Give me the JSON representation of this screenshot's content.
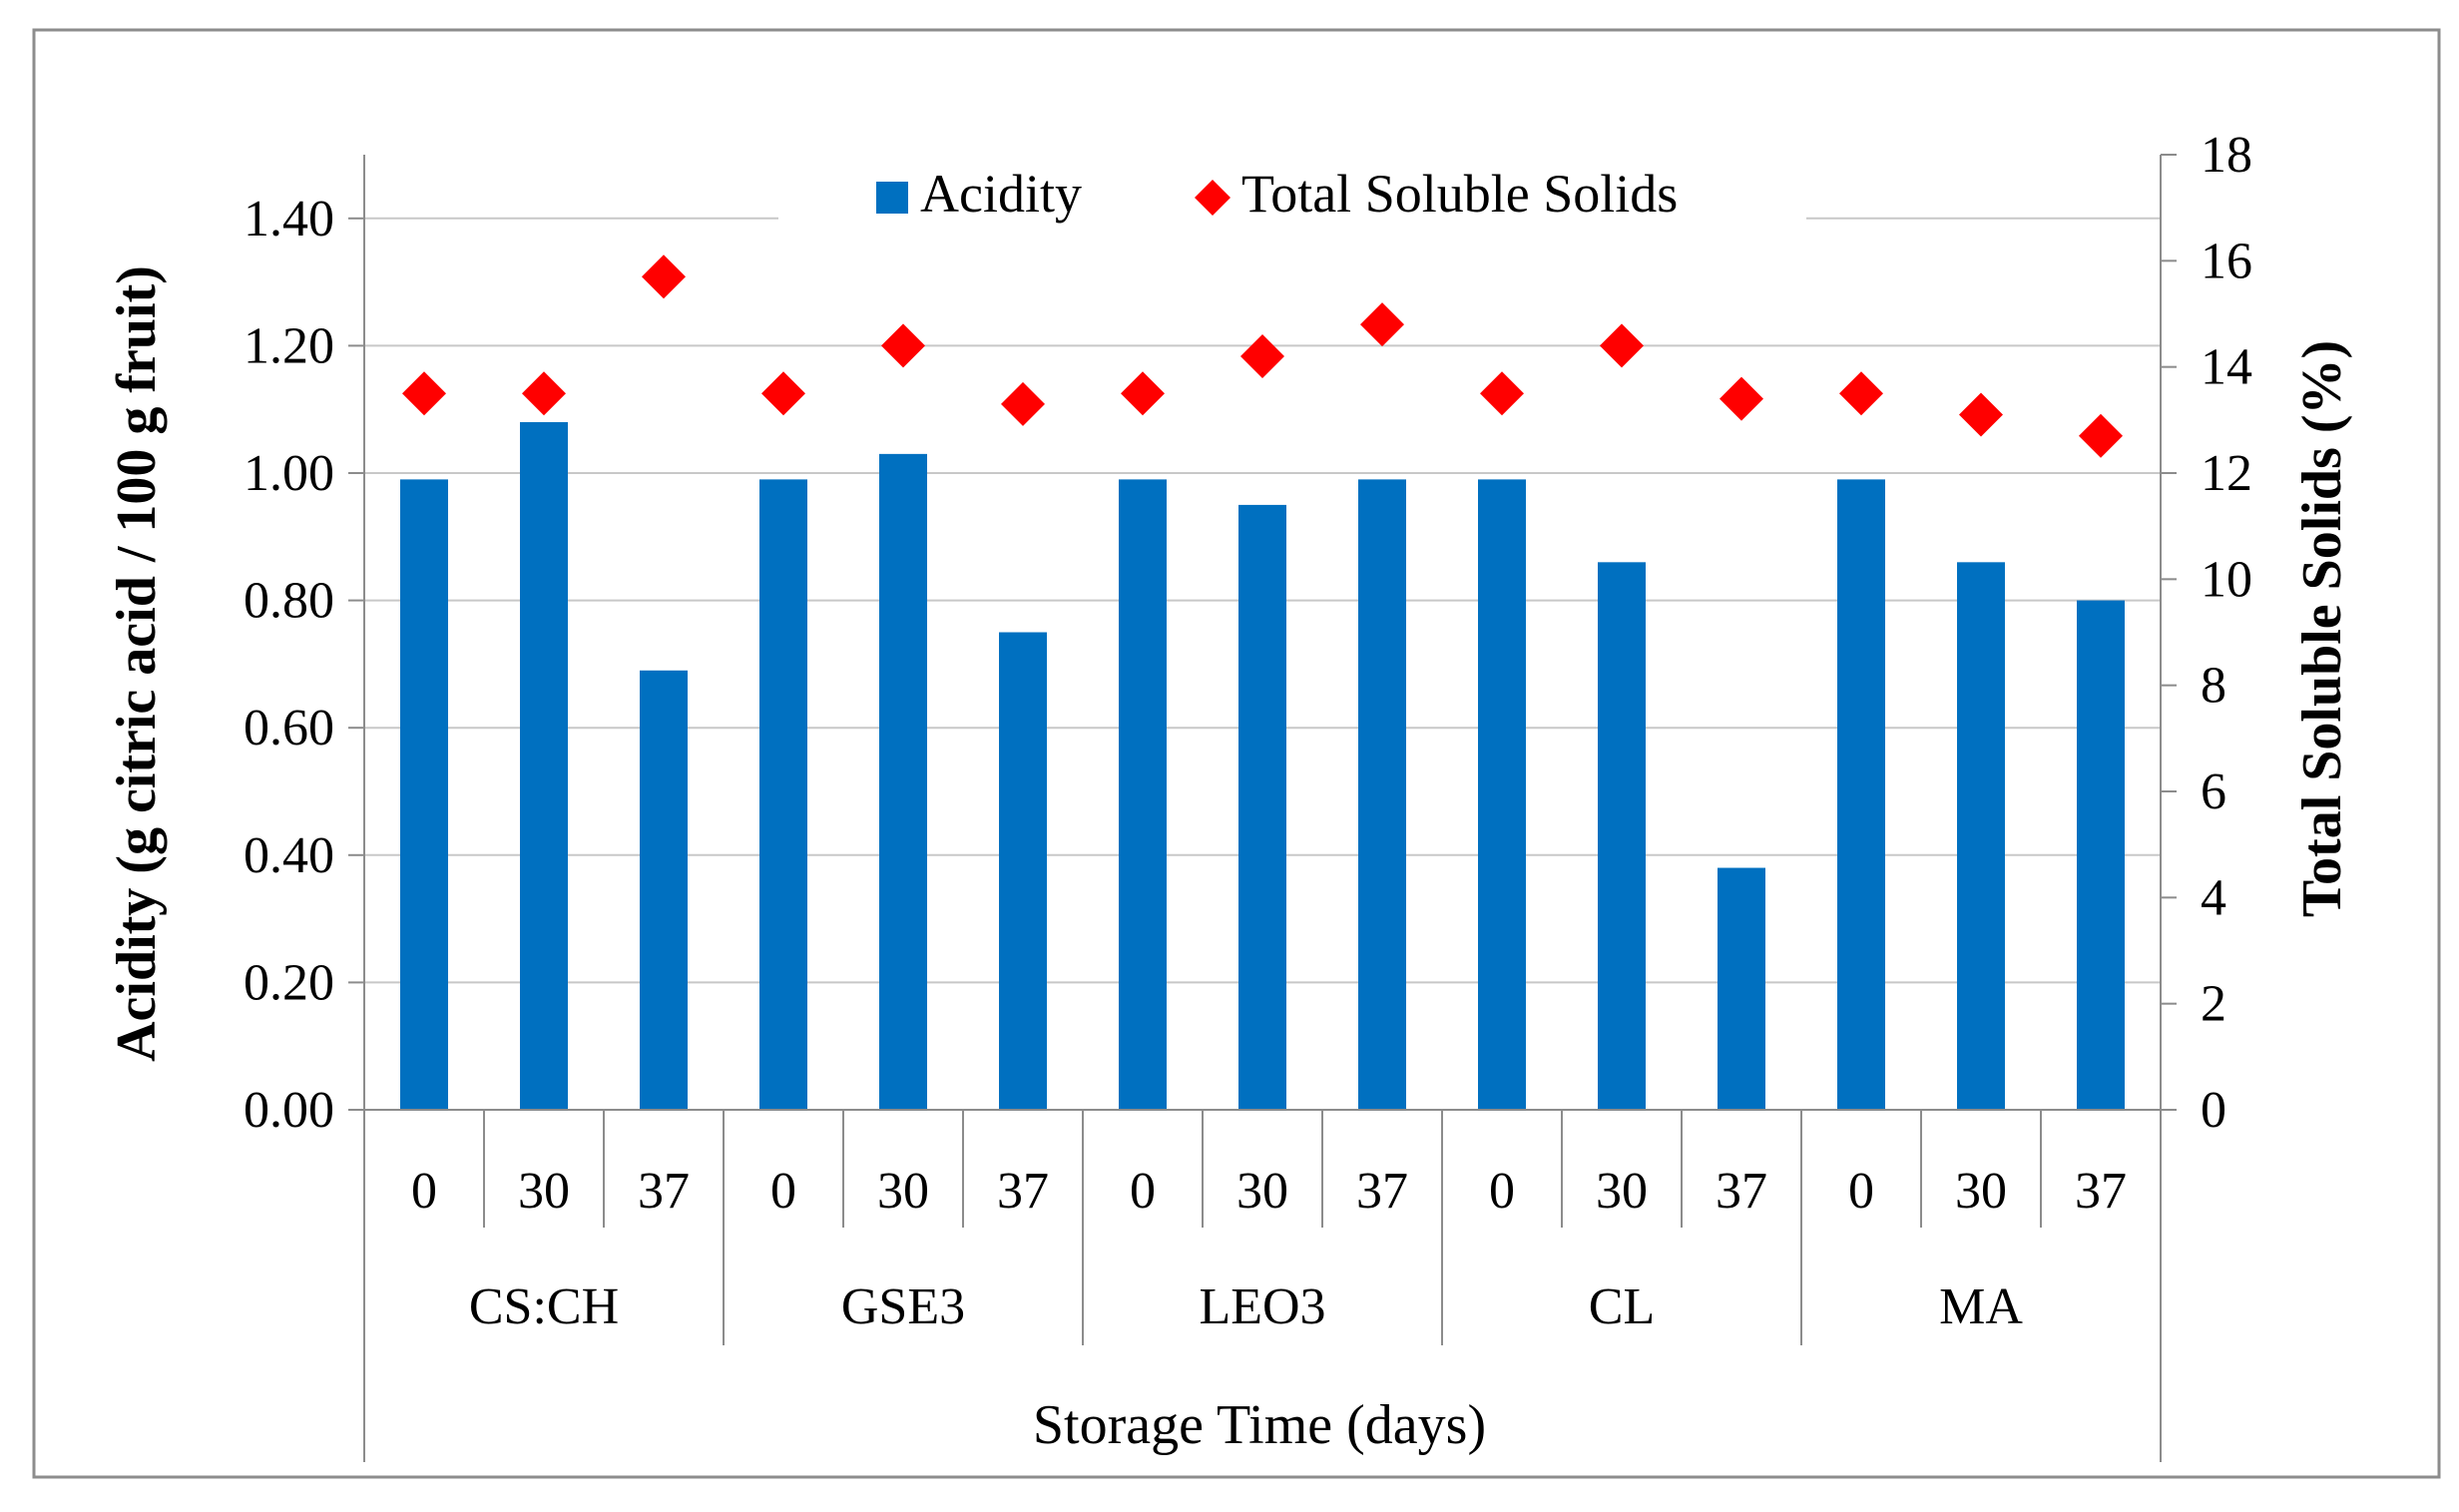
{
  "chart_data": {
    "type": "bar",
    "title": "",
    "groups": [
      "CS:CH",
      "GSE3",
      "LEO3",
      "CL",
      "MA"
    ],
    "days": [
      "0",
      "30",
      "37"
    ],
    "categories": [
      "CS:CH 0",
      "CS:CH 30",
      "CS:CH 37",
      "GSE3 0",
      "GSE3 30",
      "GSE3 37",
      "LEO3 0",
      "LEO3 30",
      "LEO3 37",
      "CL 0",
      "CL 30",
      "CL 37",
      "MA 0",
      "MA 30",
      "MA 37"
    ],
    "series": [
      {
        "name": "Acidity",
        "kind": "bar",
        "axis": "left",
        "color": "#0070C0",
        "values": [
          0.99,
          1.08,
          0.69,
          0.99,
          1.03,
          0.75,
          0.99,
          0.95,
          0.99,
          0.99,
          0.86,
          0.38,
          0.99,
          0.86,
          0.8
        ]
      },
      {
        "name": "Total Soluble Solids",
        "kind": "marker",
        "marker": "diamond",
        "axis": "right",
        "color": "#FF0000",
        "values": [
          13.5,
          13.5,
          15.7,
          13.5,
          14.4,
          13.3,
          13.5,
          14.2,
          14.8,
          13.5,
          14.4,
          13.4,
          13.5,
          13.1,
          12.7
        ]
      }
    ],
    "xlabel": "Storage Time (days)",
    "ylabel": "Acidity (g citric acid / 100 g fruit)",
    "y2label": "Total Soluble Solids (%)",
    "ylim": [
      0,
      1.5
    ],
    "yticks": [
      "0.00",
      "0.20",
      "0.40",
      "0.60",
      "0.80",
      "1.00",
      "1.20",
      "1.40"
    ],
    "y2lim": [
      0,
      18
    ],
    "y2ticks": [
      "0",
      "2",
      "4",
      "6",
      "8",
      "10",
      "12",
      "14",
      "16",
      "18"
    ],
    "grid": true,
    "legend": "top-center"
  }
}
